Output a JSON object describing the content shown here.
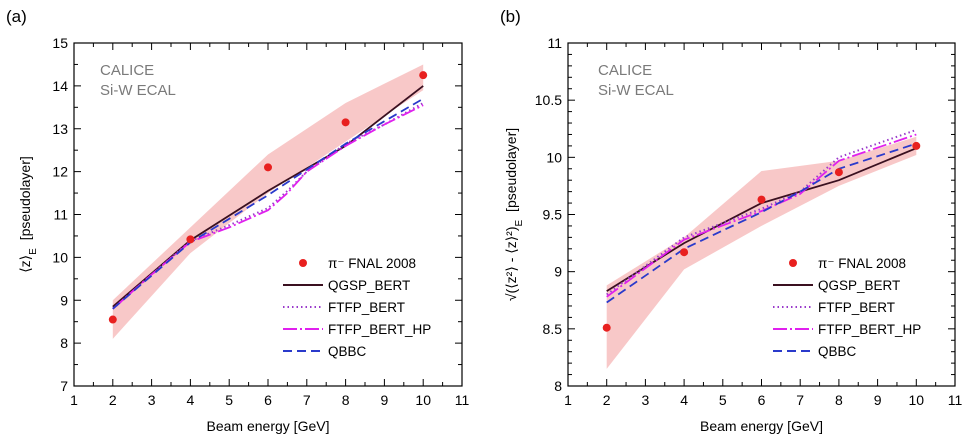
{
  "chart_data": [
    {
      "panel_label": "(a)",
      "type": "line",
      "annotation": [
        "CALICE",
        "Si-W ECAL"
      ],
      "xlabel": "Beam energy [GeV]",
      "ylabel": "⟨z⟩",
      "ylabel_sub": "E",
      "ylabel_unit": "[pseudolayer]",
      "xlim": [
        1,
        11
      ],
      "ylim": [
        7,
        15
      ],
      "xticks": [
        "1",
        "2",
        "3",
        "4",
        "5",
        "6",
        "7",
        "8",
        "9",
        "10",
        "11"
      ],
      "yticks": [
        "7",
        "8",
        "9",
        "10",
        "11",
        "12",
        "13",
        "14",
        "15"
      ],
      "band": {
        "x": [
          2,
          4,
          6,
          8,
          10
        ],
        "lower": [
          8.1,
          10.1,
          11.5,
          12.7,
          13.9
        ],
        "upper": [
          9.0,
          10.7,
          12.4,
          13.6,
          14.5
        ],
        "color": "#f5b5b5"
      },
      "data_points": {
        "name": "π⁻ FNAL 2008",
        "color": "#e8201f",
        "x": [
          2,
          4,
          6,
          8,
          10
        ],
        "y": [
          8.55,
          10.42,
          12.1,
          13.15,
          14.25
        ]
      },
      "series": [
        {
          "name": "QGSP_BERT",
          "color": "#3a1020",
          "dash": "solid",
          "x": [
            2,
            4,
            6,
            8,
            10
          ],
          "y": [
            8.85,
            10.4,
            11.55,
            12.6,
            14.0
          ]
        },
        {
          "name": "FTFP_BERT",
          "color": "#9a3acb",
          "dash": "dot",
          "x": [
            2,
            3,
            4,
            5,
            5.5,
            6,
            6.5,
            7,
            8,
            9,
            10
          ],
          "y": [
            8.8,
            9.6,
            10.38,
            10.75,
            10.95,
            11.15,
            11.55,
            12.0,
            12.65,
            13.1,
            13.6
          ]
        },
        {
          "name": "FTFP_BERT_HP",
          "color": "#e020ee",
          "dash": "longdash",
          "x": [
            2,
            3,
            4,
            5,
            5.5,
            6,
            6.5,
            7,
            8,
            9,
            10
          ],
          "y": [
            8.8,
            9.6,
            10.36,
            10.7,
            10.9,
            11.1,
            11.5,
            12.0,
            12.6,
            13.1,
            13.55
          ]
        },
        {
          "name": "QBBC",
          "color": "#2a3acb",
          "dash": "dash",
          "x": [
            2,
            4,
            6,
            8,
            10
          ],
          "y": [
            8.8,
            10.35,
            11.45,
            12.65,
            13.7
          ]
        }
      ],
      "legend_order": [
        "π⁻ FNAL 2008",
        "QGSP_BERT",
        "FTFP_BERT",
        "FTFP_BERT_HP",
        "QBBC"
      ],
      "legend_placement": "bottom-right"
    },
    {
      "panel_label": "(b)",
      "type": "line",
      "annotation": [
        "CALICE",
        "Si-W ECAL"
      ],
      "xlabel": "Beam energy [GeV]",
      "ylabel": "√(⟨z²⟩ - ⟨z⟩²)",
      "ylabel_sub": "E",
      "ylabel_unit": "[pseudolayer]",
      "xlim": [
        1,
        11
      ],
      "ylim": [
        8,
        11
      ],
      "xticks": [
        "1",
        "2",
        "3",
        "4",
        "5",
        "6",
        "7",
        "8",
        "9",
        "10",
        "11"
      ],
      "yticks": [
        "8",
        "8.5",
        "9",
        "9.5",
        "10",
        "10.5",
        "11"
      ],
      "band": {
        "x": [
          2,
          4,
          6,
          8,
          10
        ],
        "lower": [
          8.15,
          9.02,
          9.4,
          9.75,
          10.02
        ],
        "upper": [
          8.88,
          9.3,
          9.88,
          9.97,
          10.18
        ],
        "color": "#f5b5b5"
      },
      "data_points": {
        "name": "π⁻ FNAL 2008",
        "color": "#e8201f",
        "x": [
          2,
          4,
          6,
          8,
          10
        ],
        "y": [
          8.51,
          9.17,
          9.63,
          9.87,
          10.1
        ]
      },
      "series": [
        {
          "name": "QGSP_BERT",
          "color": "#3a1020",
          "dash": "solid",
          "x": [
            2,
            4,
            6,
            7,
            8,
            10
          ],
          "y": [
            8.83,
            9.25,
            9.6,
            9.7,
            9.8,
            10.08
          ]
        },
        {
          "name": "FTFP_BERT",
          "color": "#9a3acb",
          "dash": "dot",
          "x": [
            2,
            4,
            6,
            7,
            8,
            10
          ],
          "y": [
            8.8,
            9.3,
            9.55,
            9.7,
            10.0,
            10.24
          ]
        },
        {
          "name": "FTFP_BERT_HP",
          "color": "#e020ee",
          "dash": "longdash",
          "x": [
            2,
            4,
            6,
            7,
            8,
            10
          ],
          "y": [
            8.78,
            9.28,
            9.53,
            9.68,
            9.97,
            10.2
          ]
        },
        {
          "name": "QBBC",
          "color": "#2a3acb",
          "dash": "dash",
          "x": [
            2,
            4,
            6,
            7,
            8,
            10
          ],
          "y": [
            8.73,
            9.2,
            9.52,
            9.7,
            9.9,
            10.12
          ]
        }
      ],
      "legend_order": [
        "π⁻ FNAL 2008",
        "QGSP_BERT",
        "FTFP_BERT",
        "FTFP_BERT_HP",
        "QBBC"
      ],
      "legend_placement": "bottom-right"
    }
  ]
}
